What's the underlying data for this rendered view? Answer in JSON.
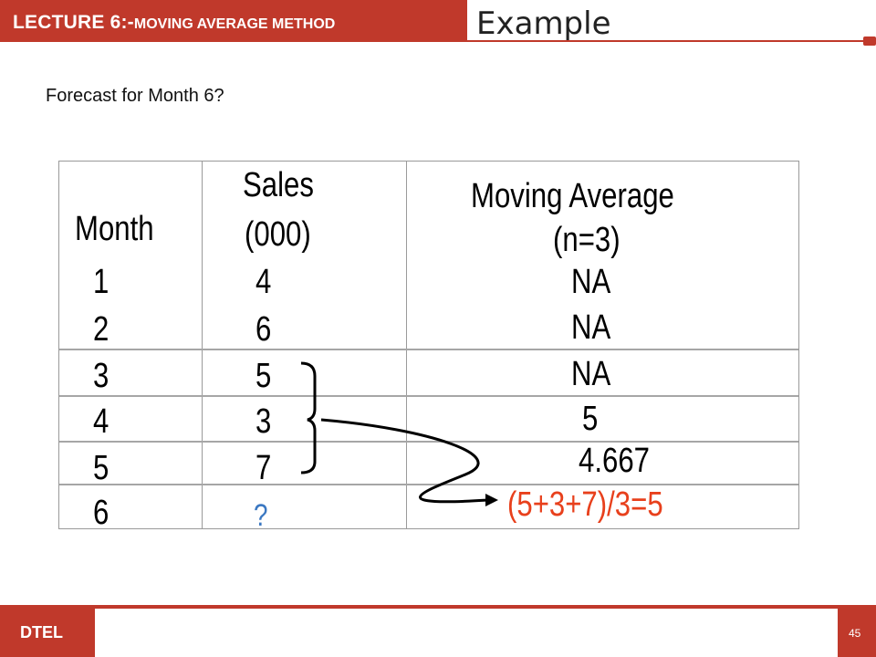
{
  "header": {
    "lecture": "LECTURE 6:-",
    "topic": "MOVING AVERAGE METHOD",
    "title": "Example"
  },
  "question": "Forecast for Month 6?",
  "table": {
    "col_month": "Month",
    "col_sales_line1": "Sales",
    "col_sales_line2": "(000)",
    "col_ma_line1": "Moving Average",
    "col_ma_line2": "(n=3)",
    "rows": [
      {
        "month": "1",
        "sales": "4",
        "ma": "NA"
      },
      {
        "month": "2",
        "sales": "6",
        "ma": "NA"
      },
      {
        "month": "3",
        "sales": "5",
        "ma": "NA"
      },
      {
        "month": "4",
        "sales": "3",
        "ma": "5"
      },
      {
        "month": "5",
        "sales": "7",
        "ma": "4.667"
      },
      {
        "month": "6",
        "sales": "?",
        "ma": "(5+3+7)/3=5"
      }
    ]
  },
  "footer": {
    "org": "DTEL",
    "page": "45"
  },
  "colors": {
    "accent": "#c0392b",
    "highlight": "#e8401c",
    "unknown": "#3b78c2"
  }
}
